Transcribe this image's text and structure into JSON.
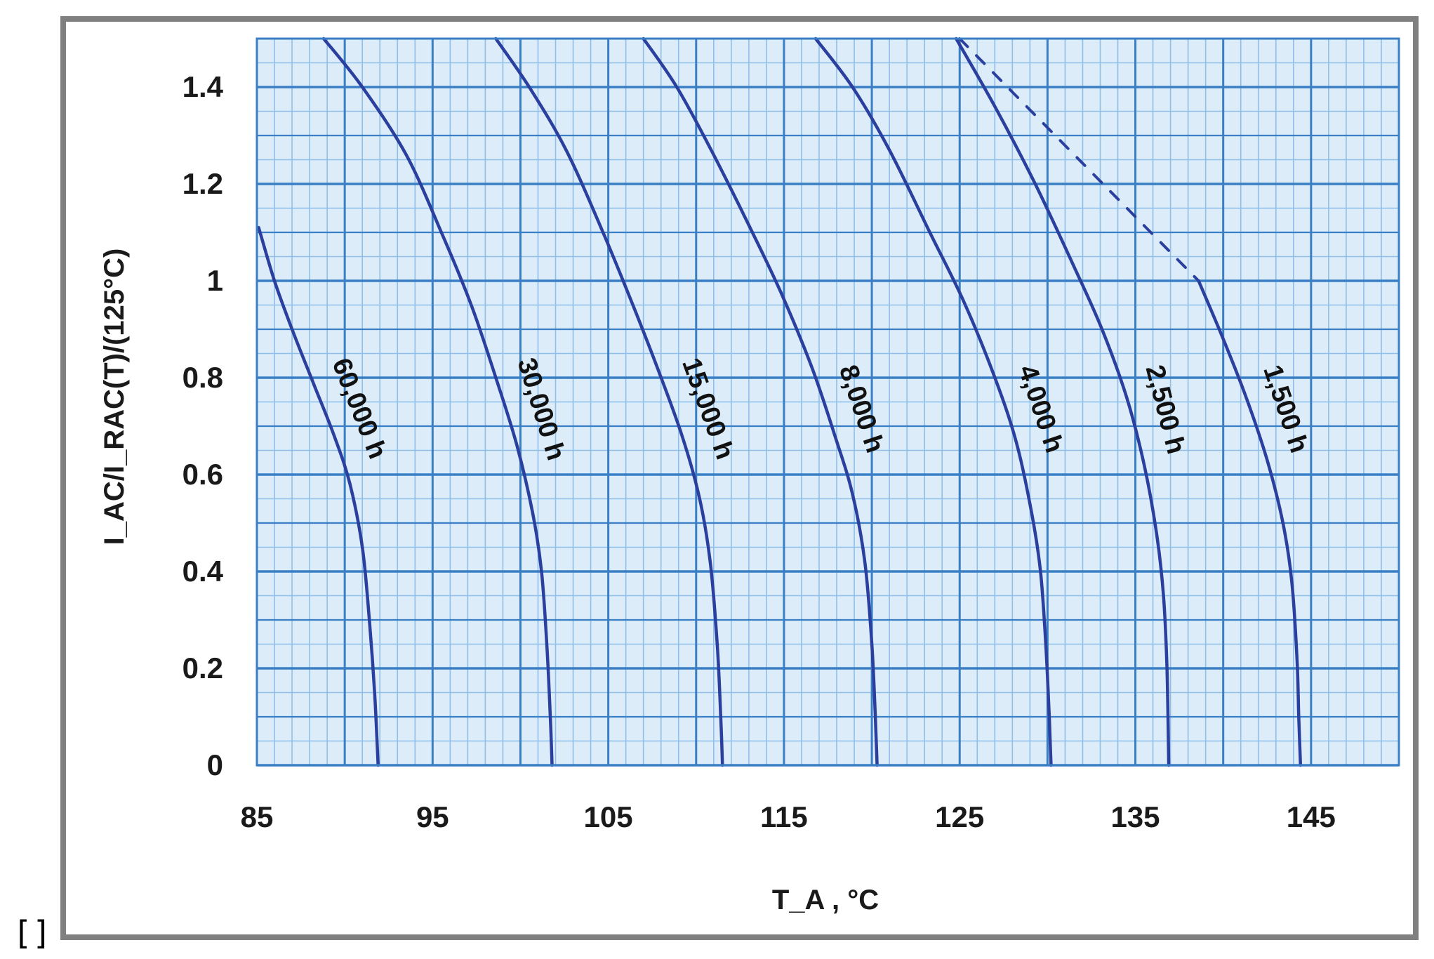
{
  "corner_mark": "[]",
  "chart_data": {
    "type": "line",
    "xlabel": "T_A , °C",
    "ylabel": "I_AC/I_RAC(T)/(125°C)",
    "xlim": [
      85,
      150
    ],
    "ylim": [
      0,
      1.5
    ],
    "x_ticks": [
      85,
      95,
      105,
      115,
      125,
      135,
      145
    ],
    "y_ticks": [
      0,
      0.2,
      0.4,
      0.6,
      0.8,
      1,
      1.2,
      1.4
    ],
    "y_tick_labels": [
      "0",
      "0.2",
      "0.4",
      "0.6",
      "0.8",
      "1",
      "1.2",
      "1.4"
    ],
    "grid": true,
    "colors": {
      "background": "#dcecf8",
      "major_grid": "#3a7fc6",
      "minor_grid": "#8fbfe8",
      "curve": "#2b3f9e",
      "frame": "#808080"
    },
    "series": [
      {
        "label": "60,000 h",
        "points": [
          [
            85.1,
            1.11
          ],
          [
            86.0,
            1.0
          ],
          [
            87.0,
            0.9
          ],
          [
            88.2,
            0.79
          ],
          [
            89.4,
            0.68
          ],
          [
            90.3,
            0.58
          ],
          [
            91.0,
            0.45
          ],
          [
            91.4,
            0.3
          ],
          [
            91.7,
            0.15
          ],
          [
            91.9,
            0.0
          ]
        ]
      },
      {
        "label": "30,000 h",
        "points": [
          [
            88.8,
            1.5
          ],
          [
            91.0,
            1.4
          ],
          [
            93.5,
            1.26
          ],
          [
            95.5,
            1.1
          ],
          [
            97.2,
            0.95
          ],
          [
            98.6,
            0.8
          ],
          [
            99.8,
            0.66
          ],
          [
            100.7,
            0.52
          ],
          [
            101.2,
            0.4
          ],
          [
            101.5,
            0.25
          ],
          [
            101.7,
            0.1
          ],
          [
            101.8,
            0.0
          ]
        ]
      },
      {
        "label": "15,000 h",
        "points": [
          [
            98.6,
            1.5
          ],
          [
            100.5,
            1.4
          ],
          [
            102.6,
            1.27
          ],
          [
            104.7,
            1.1
          ],
          [
            106.4,
            0.95
          ],
          [
            107.8,
            0.82
          ],
          [
            109.2,
            0.68
          ],
          [
            110.2,
            0.55
          ],
          [
            110.8,
            0.42
          ],
          [
            111.2,
            0.25
          ],
          [
            111.4,
            0.1
          ],
          [
            111.5,
            0.0
          ]
        ]
      },
      {
        "label": "8,000 h",
        "points": [
          [
            107.0,
            1.5
          ],
          [
            108.9,
            1.4
          ],
          [
            111.0,
            1.26
          ],
          [
            113.2,
            1.1
          ],
          [
            114.9,
            0.97
          ],
          [
            116.6,
            0.82
          ],
          [
            117.9,
            0.68
          ],
          [
            118.9,
            0.56
          ],
          [
            119.6,
            0.42
          ],
          [
            120.0,
            0.25
          ],
          [
            120.2,
            0.1
          ],
          [
            120.3,
            0.0
          ]
        ]
      },
      {
        "label": "4,000 h",
        "points": [
          [
            116.8,
            1.5
          ],
          [
            118.9,
            1.4
          ],
          [
            121.0,
            1.27
          ],
          [
            123.3,
            1.1
          ],
          [
            125.2,
            0.96
          ],
          [
            126.9,
            0.81
          ],
          [
            128.2,
            0.67
          ],
          [
            129.1,
            0.52
          ],
          [
            129.6,
            0.4
          ],
          [
            129.9,
            0.25
          ],
          [
            130.1,
            0.1
          ],
          [
            130.2,
            0.0
          ]
        ]
      },
      {
        "label": "2,500 h",
        "points": [
          [
            124.8,
            1.5
          ],
          [
            127.0,
            1.36
          ],
          [
            129.3,
            1.2
          ],
          [
            131.5,
            1.03
          ],
          [
            133.1,
            0.9
          ],
          [
            134.5,
            0.76
          ],
          [
            135.5,
            0.62
          ],
          [
            136.2,
            0.48
          ],
          [
            136.6,
            0.35
          ],
          [
            136.8,
            0.2
          ],
          [
            136.9,
            0.0
          ]
        ]
      },
      {
        "label": "1,500 h",
        "points": [
          [
            138.6,
            1.0
          ],
          [
            140.0,
            0.88
          ],
          [
            141.3,
            0.76
          ],
          [
            142.5,
            0.63
          ],
          [
            143.4,
            0.5
          ],
          [
            143.9,
            0.38
          ],
          [
            144.2,
            0.22
          ],
          [
            144.3,
            0.1
          ],
          [
            144.4,
            0.0
          ]
        ]
      },
      {
        "label": "",
        "dashed": true,
        "points": [
          [
            125.0,
            1.5
          ],
          [
            138.6,
            1.0
          ]
        ]
      }
    ]
  }
}
